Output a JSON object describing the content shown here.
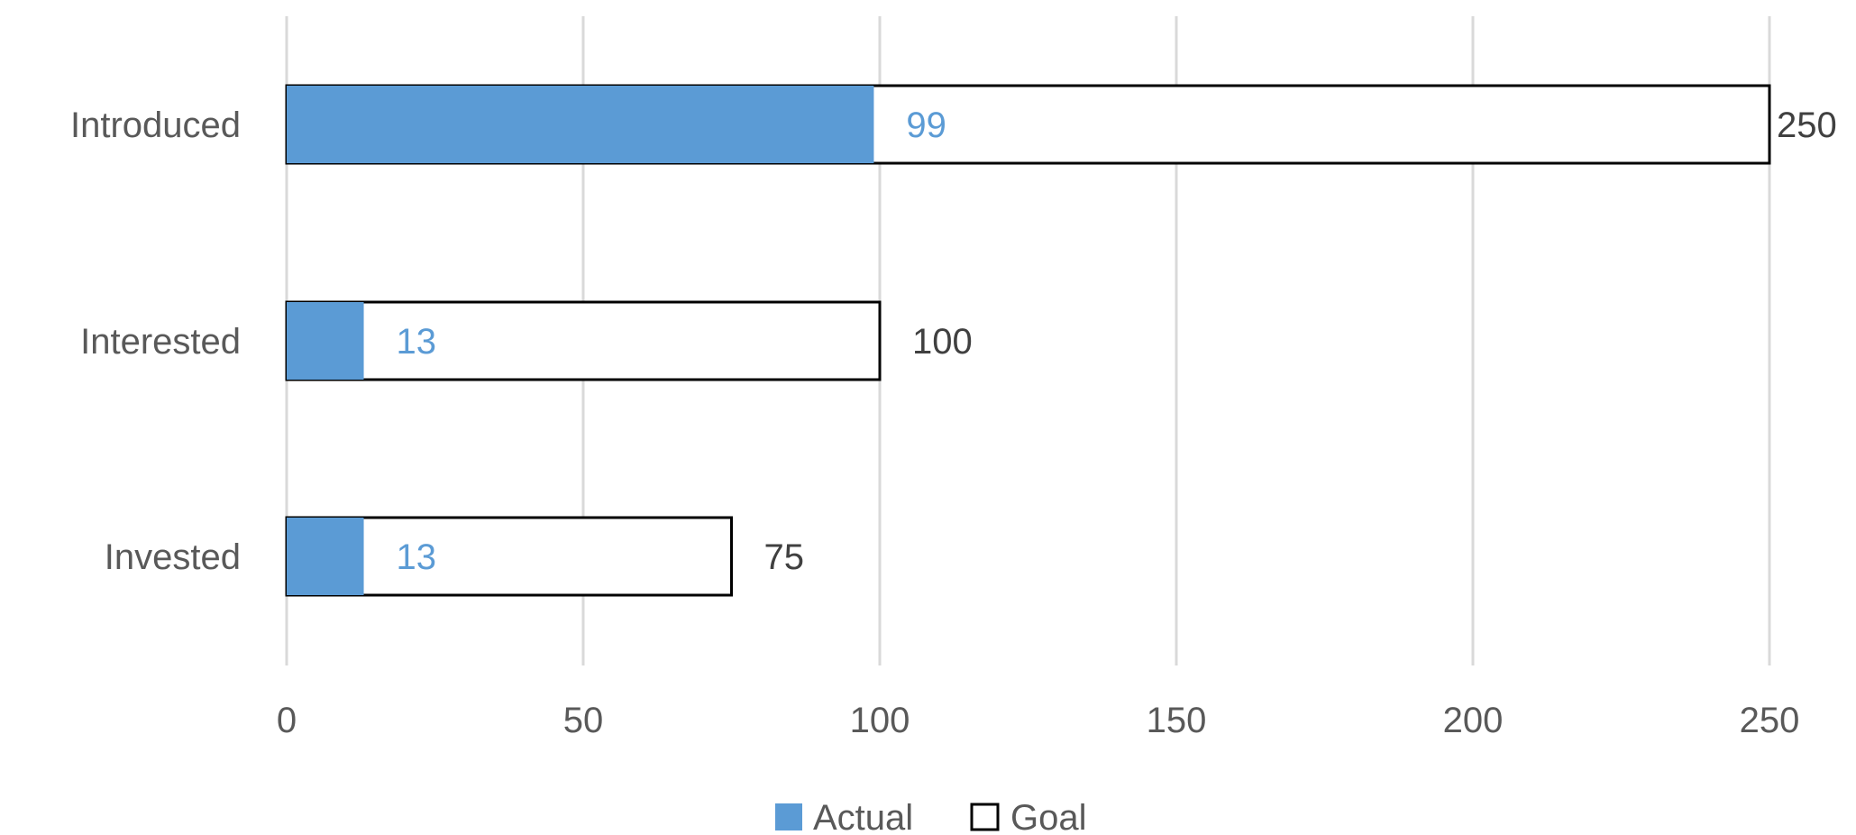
{
  "chart_data": {
    "type": "bar",
    "orientation": "horizontal",
    "categories": [
      "Introduced",
      "Interested",
      "Invested"
    ],
    "series": [
      {
        "name": "Actual",
        "values": [
          99,
          13,
          13
        ],
        "color": "#5B9BD5"
      },
      {
        "name": "Goal",
        "values": [
          250,
          100,
          75
        ],
        "color": "#FFFFFF",
        "border": "#000000"
      }
    ],
    "data_labels": {
      "actual": [
        "99",
        "13",
        "13"
      ],
      "goal": [
        "250",
        "100",
        "75"
      ]
    },
    "x_ticks": [
      "0",
      "50",
      "100",
      "150",
      "200",
      "250"
    ],
    "xlim": [
      0,
      250
    ],
    "grid": "vertical",
    "legend": {
      "position": "bottom",
      "items": [
        "Actual",
        "Goal"
      ]
    }
  }
}
